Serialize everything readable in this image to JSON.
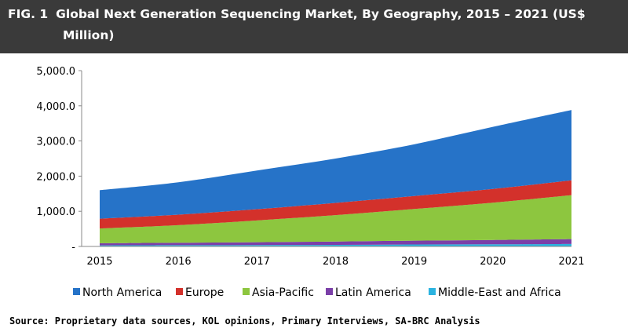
{
  "header": {
    "fig_label": "FIG. 1",
    "title_line1": "Global Next Generation Sequencing Market, By Geography, 2015 – 2021 (US$",
    "title_line2": "Million)"
  },
  "chart_data": {
    "type": "area",
    "stacked": true,
    "title": "Global Next Generation Sequencing Market, By Geography, 2015 – 2021 (US$ Million)",
    "x": [
      "2015",
      "2016",
      "2017",
      "2018",
      "2019",
      "2020",
      "2021"
    ],
    "yticks": [
      "-",
      "1,000.0",
      "2,000.0",
      "3,000.0",
      "4,000.0",
      "5,000.0"
    ],
    "ylim": [
      0,
      5000
    ],
    "grid": false,
    "legend_position": "bottom",
    "series": [
      {
        "name": "Middle-East and Africa",
        "color": "#2bb3e0",
        "values": [
          30,
          35,
          40,
          45,
          55,
          60,
          70
        ]
      },
      {
        "name": "Latin America",
        "color": "#7b3fa8",
        "values": [
          60,
          70,
          80,
          95,
          110,
          125,
          140
        ]
      },
      {
        "name": "Asia-Pacific",
        "color": "#8dc63f",
        "values": [
          420,
          500,
          620,
          750,
          900,
          1060,
          1250
        ]
      },
      {
        "name": "Europe",
        "color": "#d3312b",
        "values": [
          280,
          300,
          320,
          350,
          370,
          390,
          420
        ]
      },
      {
        "name": "North America",
        "color": "#2673c8",
        "values": [
          810,
          920,
          1100,
          1260,
          1470,
          1765,
          2000
        ]
      }
    ],
    "legend_order": [
      "North America",
      "Europe",
      "Asia-Pacific",
      "Latin America",
      "Middle-East and Africa"
    ]
  },
  "footer": {
    "source": "Source: Proprietary data sources, KOL opinions, Primary Interviews, SA-BRC Analysis"
  }
}
